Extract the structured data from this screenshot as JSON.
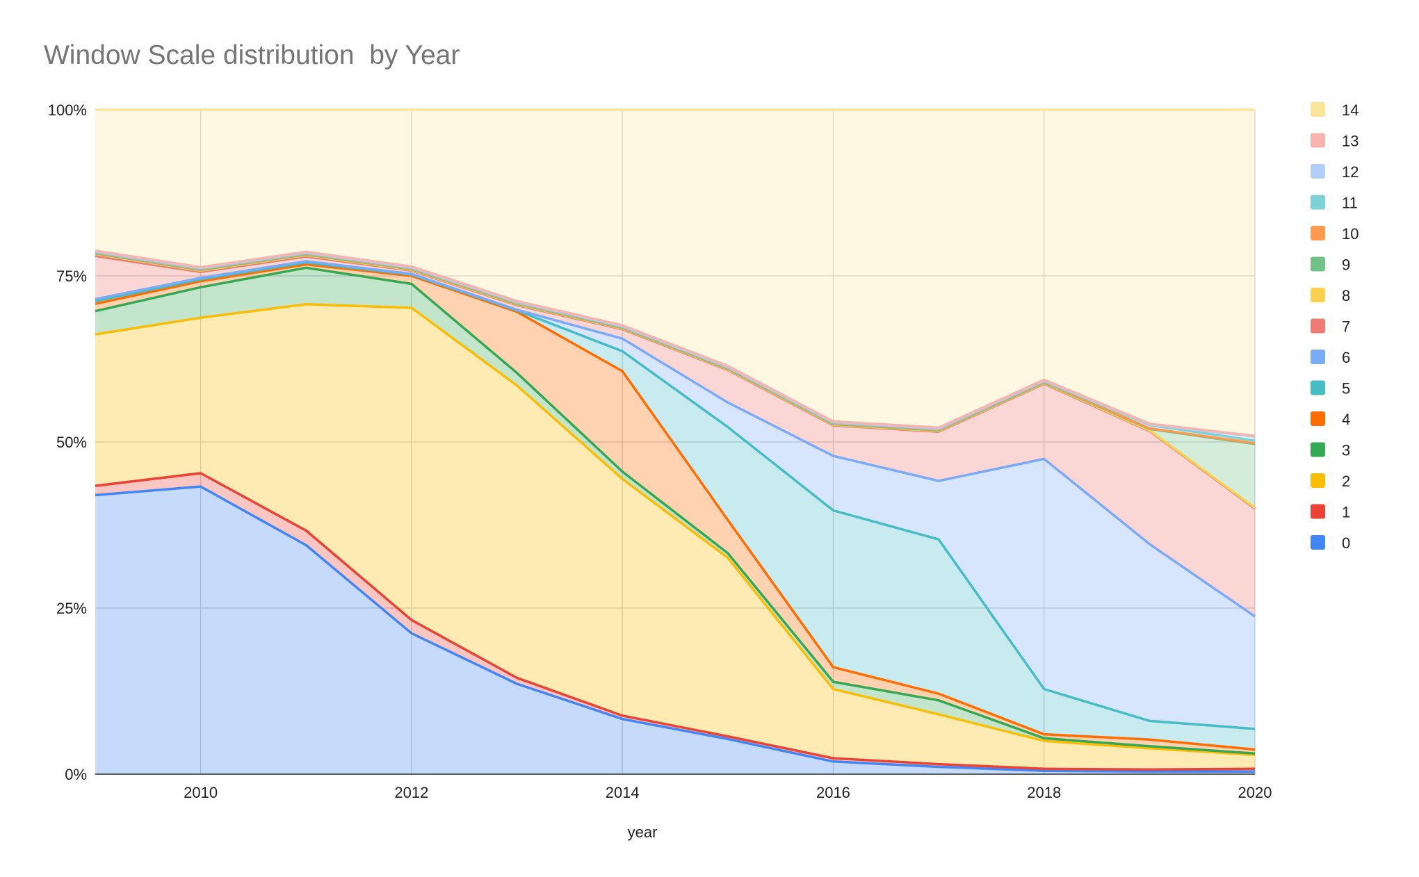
{
  "chart_data": {
    "type": "area",
    "stacked": true,
    "normalized": true,
    "title": "Window Scale distribution  by Year",
    "xlabel": "year",
    "ylabel": "",
    "xlim": [
      2009,
      2020
    ],
    "ylim": [
      0,
      100
    ],
    "x": [
      2009,
      2010,
      2011,
      2012,
      2013,
      2014,
      2015,
      2016,
      2017,
      2018,
      2019,
      2020
    ],
    "x_ticks": [
      "2010",
      "2012",
      "2014",
      "2016",
      "2018",
      "2020"
    ],
    "y_ticks": [
      "0%",
      "25%",
      "50%",
      "75%",
      "100%"
    ],
    "grid": true,
    "legend_position": "right",
    "series": [
      {
        "name": "0",
        "color": "#4285F4",
        "values": [
          42.0,
          43.3,
          34.5,
          21.2,
          13.6,
          8.3,
          5.3,
          1.9,
          1.1,
          0.5,
          0.4,
          0.4
        ]
      },
      {
        "name": "1",
        "color": "#EA4335",
        "values": [
          1.4,
          2.0,
          2.2,
          2.0,
          0.9,
          0.5,
          0.4,
          0.5,
          0.4,
          0.3,
          0.3,
          0.4
        ]
      },
      {
        "name": "2",
        "color": "#FBBC04",
        "values": [
          22.8,
          23.4,
          34.1,
          47.0,
          44.0,
          35.6,
          26.9,
          10.4,
          7.5,
          4.2,
          3.2,
          2.1
        ]
      },
      {
        "name": "3",
        "color": "#34A853",
        "values": [
          3.5,
          4.6,
          5.5,
          3.6,
          1.9,
          1.1,
          0.7,
          1.1,
          2.1,
          0.4,
          0.3,
          0.2
        ]
      },
      {
        "name": "4",
        "color": "#FF6D01",
        "values": [
          1.1,
          0.9,
          0.5,
          1.2,
          9.2,
          15.1,
          5.0,
          2.2,
          1.0,
          0.6,
          1.0,
          0.6
        ]
      },
      {
        "name": "5",
        "color": "#46BDC6",
        "values": [
          0.4,
          0.3,
          0.3,
          0.2,
          0.2,
          3.0,
          14.0,
          23.6,
          23.2,
          6.8,
          2.8,
          3.1
        ]
      },
      {
        "name": "6",
        "color": "#7BAAF7",
        "values": [
          0.3,
          0.2,
          0.2,
          0.1,
          0.1,
          1.9,
          3.7,
          8.2,
          8.8,
          34.6,
          26.6,
          16.9
        ]
      },
      {
        "name": "7",
        "color": "#F07B72",
        "values": [
          6.5,
          0.9,
          0.7,
          0.5,
          0.7,
          1.4,
          4.9,
          4.6,
          7.4,
          11.3,
          17.0,
          16.2
        ]
      },
      {
        "name": "8",
        "color": "#FCD04F",
        "values": [
          0.3,
          0.2,
          0.2,
          0.1,
          0.1,
          0.1,
          0.1,
          0.1,
          0.1,
          0.1,
          0.1,
          0.1
        ]
      },
      {
        "name": "9",
        "color": "#71C287",
        "values": [
          0.1,
          0.1,
          0.1,
          0.1,
          0.1,
          0.1,
          0.1,
          0.1,
          0.1,
          0.1,
          0.2,
          9.6
        ]
      },
      {
        "name": "10",
        "color": "#FF994D",
        "values": [
          0.1,
          0.1,
          0.1,
          0.1,
          0.1,
          0.1,
          0.1,
          0.1,
          0.1,
          0.1,
          0.1,
          0.1
        ]
      },
      {
        "name": "11",
        "color": "#7ED1D7",
        "values": [
          0.1,
          0.1,
          0.1,
          0.1,
          0.1,
          0.1,
          0.1,
          0.1,
          0.1,
          0.1,
          0.5,
          0.4
        ]
      },
      {
        "name": "12",
        "color": "#B3CEFB",
        "values": [
          0.1,
          0.1,
          0.1,
          0.1,
          0.1,
          0.1,
          0.1,
          0.1,
          0.1,
          0.1,
          0.1,
          0.6
        ]
      },
      {
        "name": "13",
        "color": "#F7B4AE",
        "values": [
          0.1,
          0.1,
          0.1,
          0.1,
          0.1,
          0.1,
          0.1,
          0.1,
          0.1,
          0.1,
          0.1,
          0.1
        ]
      },
      {
        "name": "14",
        "color": "#FDE49B",
        "values": [
          21.2,
          23.7,
          21.4,
          23.6,
          28.8,
          32.4,
          38.6,
          46.9,
          47.8,
          40.6,
          47.2,
          49.0
        ]
      }
    ]
  }
}
